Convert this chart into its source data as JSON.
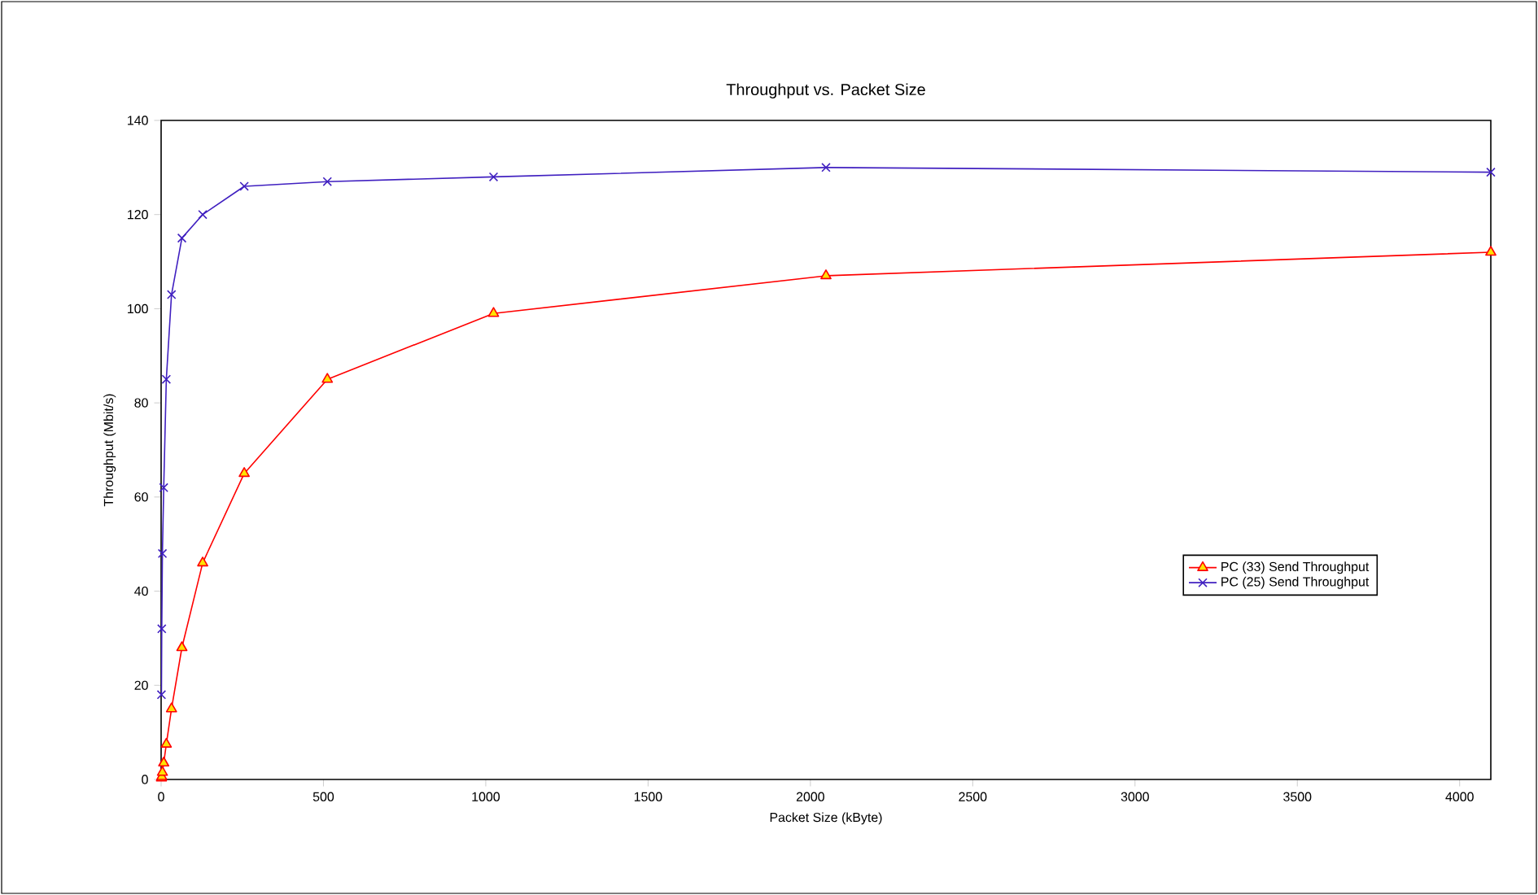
{
  "chart_data": {
    "type": "line",
    "title": "Throughput vs. Packet Size",
    "xlabel": "Packet Size (kByte)",
    "ylabel": "Throughput (Mbit/s)",
    "xlim": [
      0,
      4096
    ],
    "xticks": [
      0,
      500,
      1000,
      1500,
      2000,
      2500,
      3000,
      3500,
      4000
    ],
    "ylim": [
      0,
      140
    ],
    "yticks": [
      0,
      20,
      40,
      60,
      80,
      100,
      120,
      140
    ],
    "grid": false,
    "legend": "right",
    "series": [
      {
        "name": "PC (33) Send Throughput",
        "color": "#ff0000",
        "marker": "triangle",
        "x": [
          1,
          2,
          4,
          8,
          16,
          32,
          64,
          128,
          256,
          512,
          1024,
          2048,
          4096
        ],
        "values": [
          0.3,
          0.6,
          1.5,
          3.5,
          7.5,
          15,
          28,
          46,
          65,
          85,
          99,
          107,
          112
        ]
      },
      {
        "name": "PC (25) Send Throughput",
        "color": "#4020c0",
        "marker": "cross",
        "x": [
          1,
          2,
          4,
          8,
          16,
          32,
          64,
          128,
          256,
          512,
          1024,
          2048,
          4096
        ],
        "values": [
          18,
          32,
          48,
          62,
          85,
          103,
          115,
          120,
          126,
          127,
          128,
          130,
          129
        ]
      }
    ]
  }
}
